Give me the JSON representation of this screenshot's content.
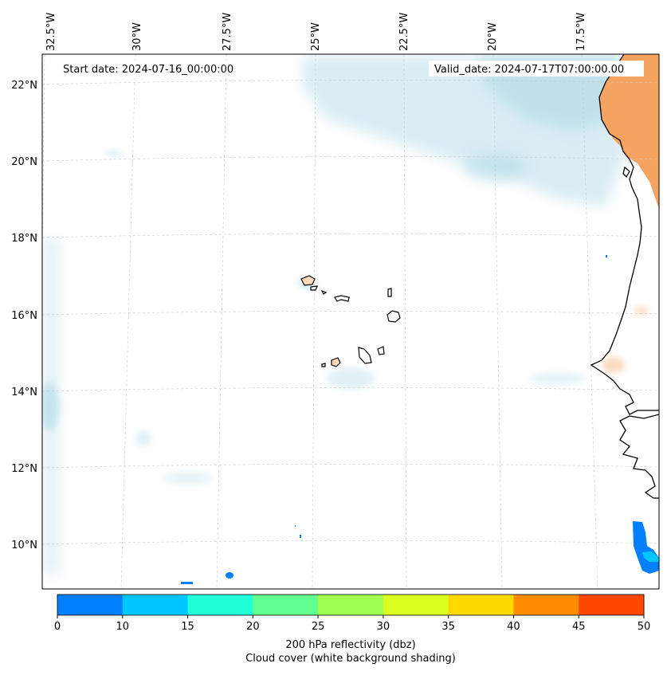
{
  "map": {
    "start_label": "Start date: 2024-07-16_00:00:00",
    "valid_label": "Valid_date: 2024-07-17T07:00:00.00",
    "lon_labels": [
      "32.5°W",
      "30°W",
      "27.5°W",
      "25°W",
      "22.5°W",
      "20°W",
      "17.5°W"
    ],
    "lat_labels": [
      "22°N",
      "20°N",
      "18°N",
      "16°N",
      "14°N",
      "12°N",
      "10°N"
    ]
  },
  "colorbar": {
    "ticks": [
      "0",
      "10",
      "15",
      "20",
      "25",
      "30",
      "35",
      "40",
      "45",
      "50"
    ],
    "colors": [
      "#0080ff",
      "#00c8ff",
      "#20ffd8",
      "#60ff90",
      "#a0ff50",
      "#daff20",
      "#ffd800",
      "#ff8c00",
      "#ff4800"
    ],
    "label_line1": "200 hPa reflectivity (dbz)",
    "label_line2": "Cloud cover (white background shading)"
  },
  "colors": {
    "land_hot": "#f4a460",
    "cloud": "#add8e6",
    "reflect_blue": "#0080ff"
  }
}
